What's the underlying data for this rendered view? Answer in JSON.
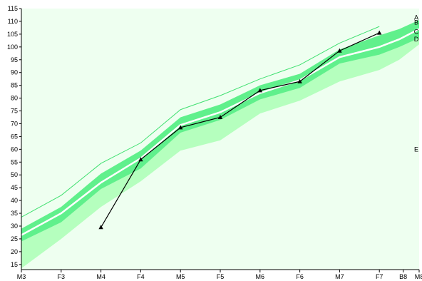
{
  "chart_data": {
    "type": "line",
    "title": "",
    "xlabel": "",
    "ylabel": "",
    "ylim": [
      13,
      115
    ],
    "y_ticks": [
      15,
      20,
      25,
      30,
      35,
      40,
      45,
      50,
      55,
      60,
      65,
      70,
      75,
      80,
      85,
      90,
      95,
      100,
      105,
      110,
      115
    ],
    "x_categories": [
      "M3",
      "F3",
      "M4",
      "F4",
      "M5",
      "F5",
      "M6",
      "F6",
      "M7",
      "F7",
      "B8",
      "M8"
    ],
    "x_ticks": [
      {
        "label": "M3",
        "x": 0
      },
      {
        "label": "F3",
        "x": 1
      },
      {
        "label": "M4",
        "x": 2
      },
      {
        "label": "F4",
        "x": 3
      },
      {
        "label": "M5",
        "x": 4
      },
      {
        "label": "F5",
        "x": 5
      },
      {
        "label": "M6",
        "x": 6
      },
      {
        "label": "F6",
        "x": 7
      },
      {
        "label": "M7",
        "x": 8
      },
      {
        "label": "F7",
        "x": 9
      },
      {
        "label": "B8",
        "x": 9.6
      },
      {
        "label": "M8",
        "x": 10
      }
    ],
    "reference_x": [
      0,
      1,
      2,
      3,
      4,
      5,
      6,
      7,
      8,
      9,
      9.5,
      10
    ],
    "bands": {
      "A_upper_line": [
        33.5,
        42,
        54.5,
        62.5,
        75.5,
        81,
        87.5,
        93,
        101.5,
        108,
        null,
        null
      ],
      "B_upper": [
        29,
        37.5,
        50.5,
        59.5,
        72.5,
        77.5,
        85,
        89.5,
        99,
        104.5,
        107,
        110.5
      ],
      "C_median": [
        26.5,
        35,
        47,
        56.5,
        69.5,
        74.5,
        82,
        87,
        96,
        100,
        103,
        107
      ],
      "D_lower": [
        24,
        31.5,
        44.5,
        52.5,
        66.5,
        71.5,
        79.5,
        84,
        93.5,
        97,
        100,
        103.5
      ],
      "E_lower": [
        13.5,
        25,
        37.5,
        47.5,
        59.5,
        63.5,
        74,
        79,
        86.5,
        91,
        95,
        101
      ]
    },
    "band_labels": [
      "A",
      "B",
      "C",
      "D",
      "E"
    ],
    "series": [
      {
        "x": [
          2,
          3,
          4,
          5,
          6,
          7,
          8,
          9
        ],
        "values": [
          29.5,
          56,
          68.5,
          72.5,
          83,
          86.5,
          98.5,
          105.5
        ]
      }
    ],
    "colors": {
      "background": "#eefff0",
      "outer_band": "#b5ffbe",
      "inner_band": "#60f08c",
      "median_line": "#ffffff",
      "upper_line": "#40e070",
      "series_line": "#000000"
    },
    "grid": false
  }
}
